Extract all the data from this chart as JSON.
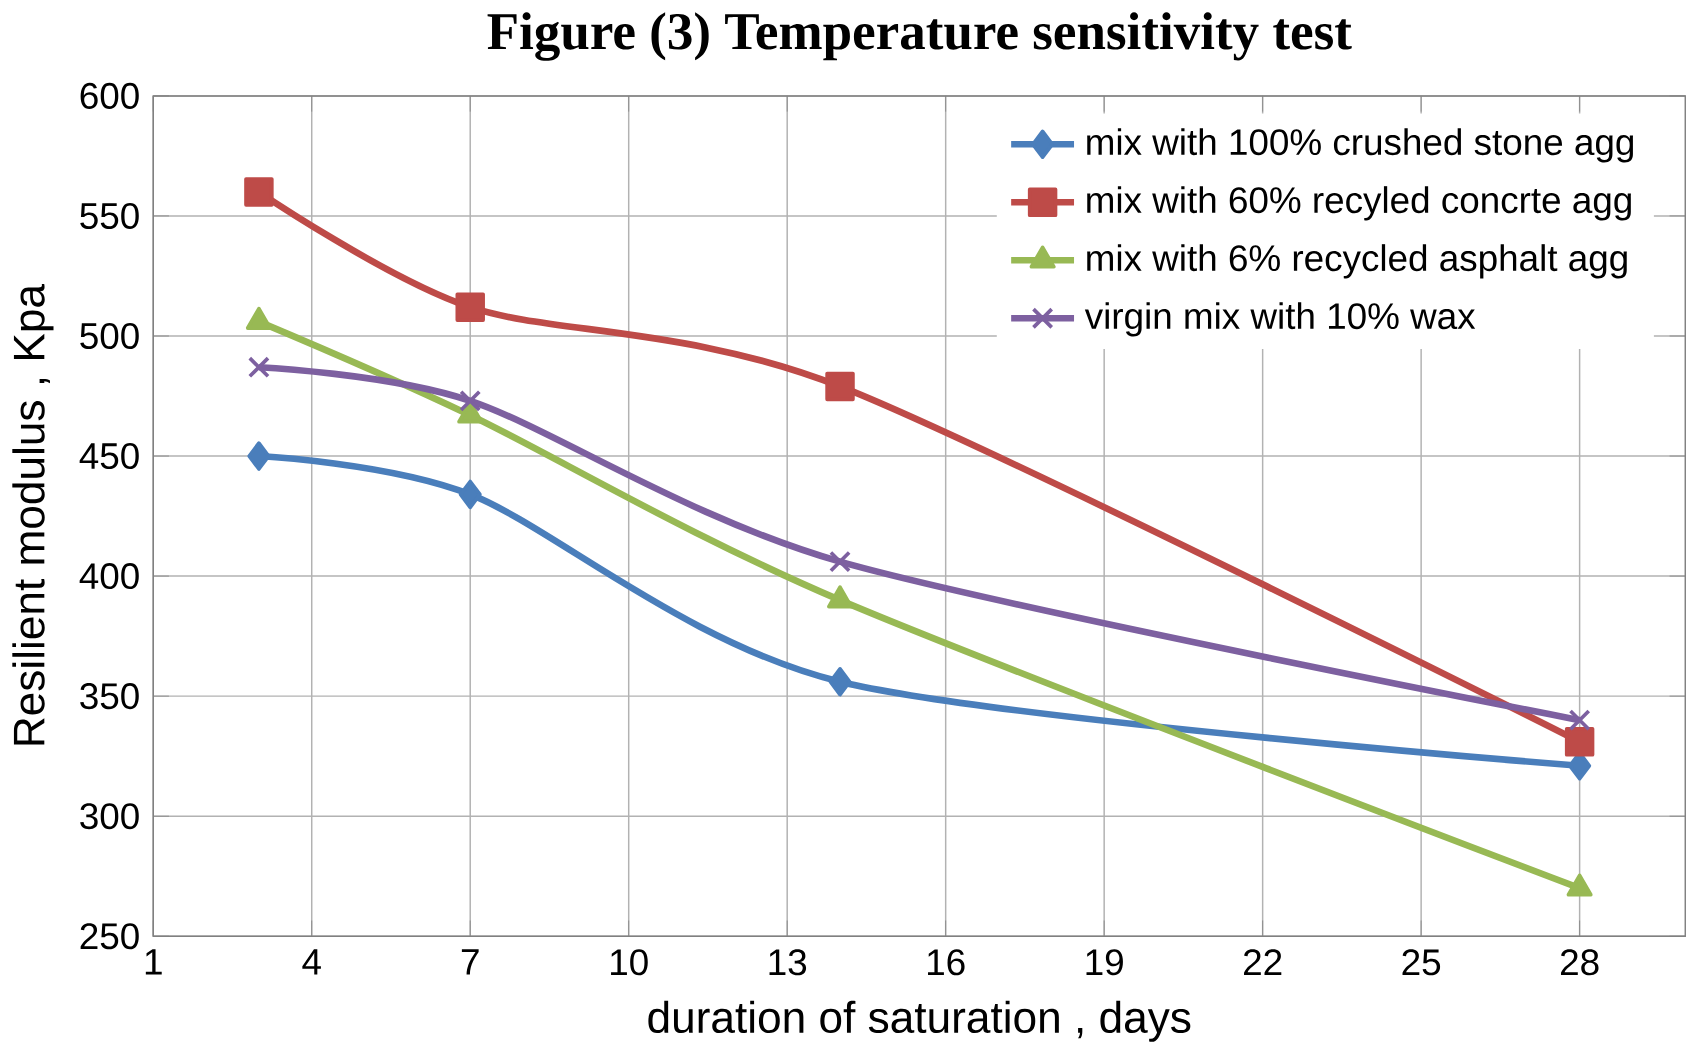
{
  "chart_data": {
    "type": "line",
    "title": "Figure (3) Temperature sensitivity test",
    "xlabel": "duration of saturation , days",
    "ylabel": "Resilient modulus  , Kpa",
    "x": [
      3,
      7,
      14,
      28
    ],
    "series": [
      {
        "name": "mix with 100% crushed stone agg",
        "color": "#4a7ebb",
        "marker": "diamond",
        "values": [
          450,
          434,
          356,
          321
        ]
      },
      {
        "name": "mix with 60% recyled concrte agg",
        "color": "#be4b48",
        "marker": "square",
        "values": [
          560,
          512,
          479,
          331
        ]
      },
      {
        "name": "mix with 6% recycled asphalt agg",
        "color": "#98b954",
        "marker": "triangle",
        "values": [
          506,
          467,
          390,
          270
        ]
      },
      {
        "name": "virgin mix with 10% wax",
        "color": "#7d60a0",
        "marker": "cross",
        "values": [
          487,
          473,
          406,
          340
        ]
      }
    ],
    "xlim": [
      1,
      30
    ],
    "xticks": [
      1,
      4,
      7,
      10,
      13,
      16,
      19,
      22,
      25,
      28
    ],
    "ylim": [
      250,
      600
    ],
    "yticks": [
      250,
      300,
      350,
      400,
      450,
      500,
      550,
      600
    ],
    "grid": true,
    "legend": "top right",
    "line_style": "solid"
  }
}
